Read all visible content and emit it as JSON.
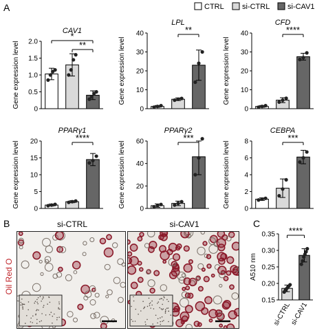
{
  "panel_letters": {
    "a": "A",
    "b": "B",
    "c": "C"
  },
  "legend": {
    "items": [
      {
        "label": "CTRL",
        "color": "#ffffff"
      },
      {
        "label": "si-CTRL",
        "color": "#d9d9d9"
      },
      {
        "label": "si-CAV1",
        "color": "#666666"
      }
    ]
  },
  "panel_b": {
    "col_labels": [
      "si-CTRL",
      "si-CAV1"
    ],
    "side_label": "Oil Red O",
    "side_label_color": "#c0282d",
    "stain_color": "#8b1a2a"
  },
  "colors": {
    "ctrl": "#ffffff",
    "sictrl": "#d9d9d9",
    "sicav1": "#666666",
    "dot": "#222222"
  },
  "chart_data": [
    {
      "type": "bar",
      "title": "CAV1",
      "ylabel": "Gene expression level",
      "categories": [
        "CTRL",
        "si-CTRL",
        "si-CAV1"
      ],
      "values": [
        1.03,
        1.3,
        0.4
      ],
      "errors": [
        0.17,
        0.33,
        0.13
      ],
      "points": [
        [
          0.85,
          1.0,
          1.1,
          1.15
        ],
        [
          1.0,
          1.15,
          1.45,
          1.6
        ],
        [
          0.28,
          0.35,
          0.45,
          0.5
        ]
      ],
      "ylim": [
        0,
        2.0
      ],
      "yticks": [
        "0",
        "0.5",
        "1.0",
        "1.5",
        "2.0"
      ],
      "ytick_values": [
        0,
        0.5,
        1.0,
        1.5,
        2.0
      ],
      "significance": [
        {
          "from": 0,
          "to": 2,
          "label": "*"
        },
        {
          "from": 1,
          "to": 2,
          "label": "**"
        }
      ]
    },
    {
      "type": "bar",
      "title": "LPL",
      "ylabel": "Gene expression level",
      "categories": [
        "CTRL",
        "si-CTRL",
        "si-CAV1"
      ],
      "values": [
        1.2,
        5.0,
        23
      ],
      "errors": [
        0.5,
        0.7,
        8
      ],
      "points": [
        [
          0.8,
          1.2,
          1.6
        ],
        [
          4.5,
          5.0,
          5.4
        ],
        [
          14,
          24,
          30
        ]
      ],
      "ylim": [
        0,
        40
      ],
      "yticks": [
        "0",
        "10",
        "20",
        "30",
        "40"
      ],
      "ytick_values": [
        0,
        10,
        20,
        30,
        40
      ],
      "significance": [
        {
          "from": 1,
          "to": 2,
          "label": "**"
        }
      ]
    },
    {
      "type": "bar",
      "title": "CFD",
      "ylabel": "Gene expression level",
      "categories": [
        "CTRL",
        "si-CTRL",
        "si-CAV1"
      ],
      "values": [
        1.2,
        4.5,
        27.5
      ],
      "errors": [
        0.5,
        1.3,
        1.8
      ],
      "points": [
        [
          0.8,
          1.2,
          1.6
        ],
        [
          3.5,
          4.5,
          5.5
        ],
        [
          26,
          27,
          29.5
        ]
      ],
      "ylim": [
        0,
        40
      ],
      "yticks": [
        "0",
        "10",
        "20",
        "30",
        "40"
      ],
      "ytick_values": [
        0,
        10,
        20,
        30,
        40
      ],
      "significance": [
        {
          "from": 1,
          "to": 2,
          "label": "****"
        }
      ]
    },
    {
      "type": "bar",
      "title": "PPARγ1",
      "ylabel": "Gene expression level",
      "categories": [
        "CTRL",
        "si-CTRL",
        "si-CAV1"
      ],
      "values": [
        1.0,
        2.0,
        14.5
      ],
      "errors": [
        0.3,
        0.3,
        1.8
      ],
      "points": [
        [
          0.8,
          1.0,
          1.2
        ],
        [
          1.8,
          2.0,
          2.2
        ],
        [
          13.5,
          14.2,
          15.5
        ]
      ],
      "ylim": [
        0,
        20
      ],
      "yticks": [
        "0",
        "5",
        "10",
        "15",
        "20"
      ],
      "ytick_values": [
        0,
        5,
        10,
        15,
        20
      ],
      "significance": [
        {
          "from": 1,
          "to": 2,
          "label": "****"
        }
      ]
    },
    {
      "type": "bar",
      "title": "PPARγ2",
      "ylabel": "Gene expression level",
      "categories": [
        "CTRL",
        "si-CTRL",
        "si-CAV1"
      ],
      "values": [
        2.5,
        4.5,
        46
      ],
      "errors": [
        1.5,
        2.0,
        16
      ],
      "points": [
        [
          1.5,
          2.5,
          3.5
        ],
        [
          3.0,
          4.5,
          6.0
        ],
        [
          30,
          45,
          62
        ]
      ],
      "ylim": [
        0,
        60
      ],
      "yticks": [
        "0",
        "20",
        "40",
        "60"
      ],
      "ytick_values": [
        0,
        20,
        40,
        60
      ],
      "significance": [
        {
          "from": 1,
          "to": 2,
          "label": "***"
        }
      ]
    },
    {
      "type": "bar",
      "title": "CEBPA",
      "ylabel": "Gene expression level",
      "categories": [
        "CTRL",
        "si-CTRL",
        "si-CAV1"
      ],
      "values": [
        1.1,
        2.4,
        6.1
      ],
      "errors": [
        0.15,
        1.1,
        0.8
      ],
      "points": [
        [
          1.0,
          1.1,
          1.2
        ],
        [
          1.5,
          2.3,
          3.4
        ],
        [
          5.5,
          6.0,
          6.7
        ]
      ],
      "ylim": [
        0,
        8
      ],
      "yticks": [
        "0",
        "2",
        "4",
        "6",
        "8"
      ],
      "ytick_values": [
        0,
        2,
        4,
        6,
        8
      ],
      "significance": [
        {
          "from": 1,
          "to": 2,
          "label": "***"
        }
      ]
    },
    {
      "type": "bar",
      "title": "",
      "ylabel": "A510 nm",
      "categories": [
        "si-CTRL",
        "si-CAV1"
      ],
      "values": [
        0.185,
        0.285
      ],
      "errors": [
        0.01,
        0.02
      ],
      "points": [
        [
          0.174,
          0.18,
          0.184,
          0.188,
          0.192,
          0.196
        ],
        [
          0.258,
          0.268,
          0.28,
          0.288,
          0.296,
          0.305
        ]
      ],
      "ylim": [
        0.15,
        0.35
      ],
      "yticks": [
        "0.15",
        "0.20",
        "0.25",
        "0.30",
        "0.35"
      ],
      "ytick_values": [
        0.15,
        0.2,
        0.25,
        0.3,
        0.35
      ],
      "significance": [
        {
          "from": 0,
          "to": 1,
          "label": "****"
        }
      ]
    }
  ]
}
